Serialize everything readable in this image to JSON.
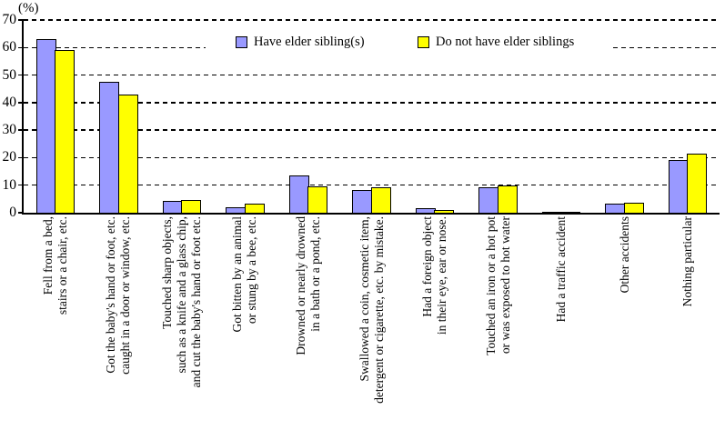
{
  "chart": {
    "unit_label": "(%)"
  },
  "chart_data": {
    "type": "bar",
    "title": "",
    "xlabel": "",
    "ylabel": "(%)",
    "ylim": [
      0,
      70
    ],
    "yticks": [
      0,
      10,
      20,
      30,
      40,
      50,
      60,
      70
    ],
    "grid": "horizontal-dashed",
    "legend_position": "top-center-inside",
    "categories": [
      [
        "Fell from a bed,",
        "stairs or a chair, etc."
      ],
      [
        "Got the baby's hand or foot, etc.",
        "caught in a door or window, etc."
      ],
      [
        "Touched sharp objects,",
        "such as a knife and a glass chip,",
        "and cut the baby's hand or foot etc."
      ],
      [
        "Got bitten by an animal",
        "or stung by a bee, etc."
      ],
      [
        "Drowned or nearly drowned",
        "in a bath or a pond, etc."
      ],
      [
        "Swallowed a coin, cosmetic item,",
        "detergent or cigarette, etc. by mistake."
      ],
      [
        "Had a foreign object",
        "in their eye, ear or nose."
      ],
      [
        "Touched an iron or a hot pot",
        "or was exposed to hot water"
      ],
      [
        "Had a traffic accident"
      ],
      [
        "Other accidents"
      ],
      [
        "Nothing particular"
      ]
    ],
    "series": [
      {
        "name": "Have elder sibling(s)",
        "color": "#9999ff",
        "values": [
          63,
          47.5,
          4.4,
          1.9,
          13.4,
          8.4,
          1.6,
          9.3,
          0.3,
          3.2,
          19.2
        ]
      },
      {
        "name": "Do not have elder siblings",
        "color": "#ffff00",
        "values": [
          59,
          43,
          4.7,
          3.3,
          9.7,
          9.1,
          1.1,
          10,
          0.3,
          3.6,
          21.4
        ]
      }
    ]
  }
}
